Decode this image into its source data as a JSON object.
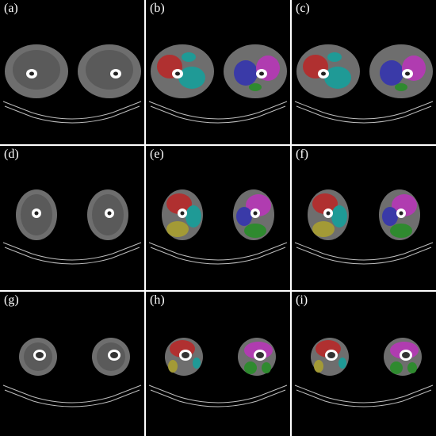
{
  "figure": {
    "panels": [
      {
        "label": "(a)",
        "slice": "upper",
        "segmented": false
      },
      {
        "label": "(b)",
        "slice": "upper",
        "segmented": true
      },
      {
        "label": "(c)",
        "slice": "upper",
        "segmented": true
      },
      {
        "label": "(d)",
        "slice": "mid",
        "segmented": false
      },
      {
        "label": "(e)",
        "slice": "mid",
        "segmented": true
      },
      {
        "label": "(f)",
        "slice": "mid",
        "segmented": true
      },
      {
        "label": "(g)",
        "slice": "lower",
        "segmented": false
      },
      {
        "label": "(h)",
        "slice": "lower",
        "segmented": true
      },
      {
        "label": "(i)",
        "slice": "lower",
        "segmented": true
      }
    ],
    "colors": {
      "background": "#000000",
      "border": "#ffffff",
      "tissue": "#6e6e6e",
      "muscle": "#5a5a5a",
      "bone": "#ffffff",
      "table_line": "#bdbdbd",
      "red": "#b03030",
      "teal": "#1f9a96",
      "blue": "#3a3aa8",
      "magenta": "#b03cb0",
      "green": "#2f8a2f",
      "olive": "#a39a36"
    }
  }
}
